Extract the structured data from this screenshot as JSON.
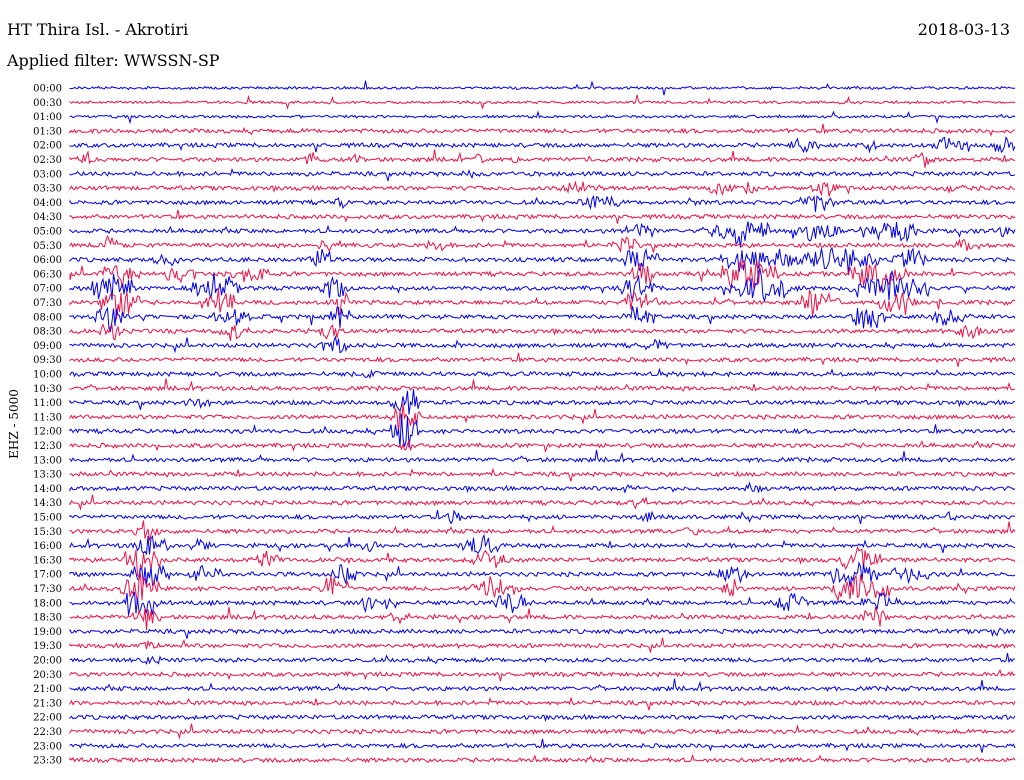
{
  "header": {
    "station": "HT Thira Isl. - Akrotiri",
    "date": "2018-03-13",
    "filter": "Applied filter: WWSSN-SP"
  },
  "chart_data": {
    "type": "line",
    "title": "HT Thira Isl. - Akrotiri",
    "ylabel": "EHZ - 5000",
    "row_labels": [
      "00:00",
      "00:30",
      "01:00",
      "01:30",
      "02:00",
      "02:30",
      "03:00",
      "03:30",
      "04:00",
      "04:30",
      "05:00",
      "05:30",
      "06:00",
      "06:30",
      "07:00",
      "07:30",
      "08:00",
      "08:30",
      "09:00",
      "09:30",
      "10:00",
      "10:30",
      "11:00",
      "11:30",
      "12:00",
      "12:30",
      "13:00",
      "13:30",
      "14:00",
      "14:30",
      "15:00",
      "15:30",
      "16:00",
      "16:30",
      "17:00",
      "17:30",
      "18:00",
      "18:30",
      "19:00",
      "19:30",
      "20:00",
      "20:30",
      "21:00",
      "21:30",
      "22:00",
      "22:30",
      "23:00",
      "23:30"
    ],
    "series_colors": [
      "#0000ee",
      "#ee1144"
    ],
    "grid": false
  }
}
